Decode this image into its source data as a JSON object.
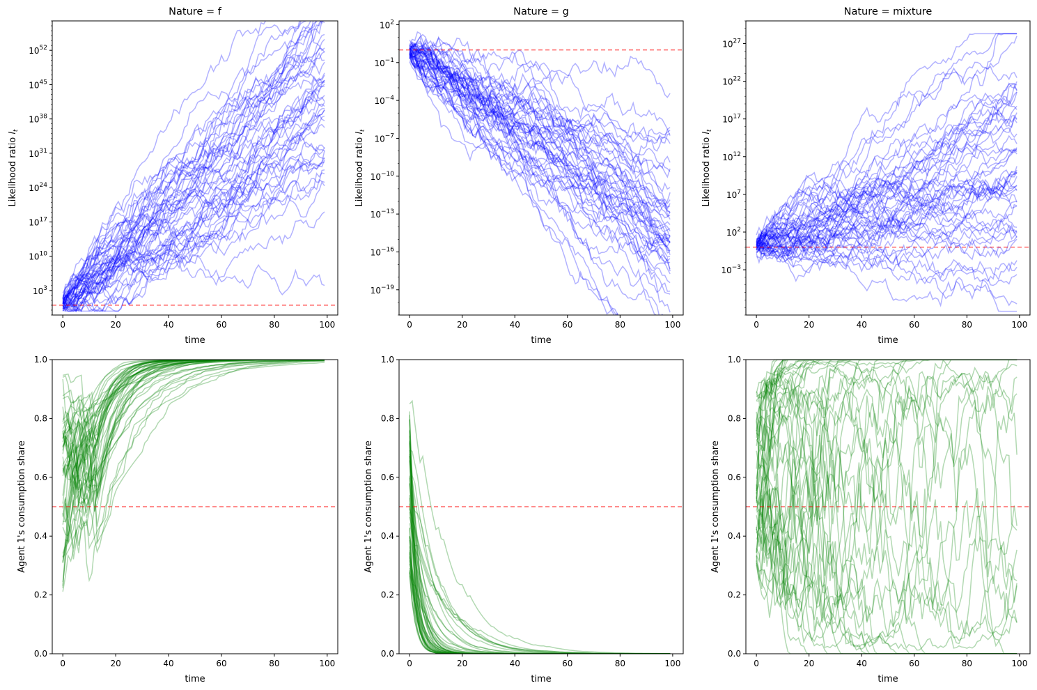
{
  "chart_data": [
    {
      "type": "line",
      "title": "Nature = f",
      "xlabel": "time",
      "ylabel": "Likelihood ratio",
      "ylabel_sub": "t",
      "yscale": "log10",
      "xlim": [
        -4,
        104
      ],
      "ylim_log10": [
        -2,
        58
      ],
      "x_ticks": [
        "0",
        "20",
        "40",
        "60",
        "80",
        "100"
      ],
      "y_tick_base": "10",
      "y_tick_exponents": [
        "3",
        "10",
        "17",
        "24",
        "31",
        "38",
        "45",
        "52"
      ],
      "reference_line": {
        "value": 1,
        "color": "#ff0000",
        "style": "dashed"
      },
      "series_color": "#0000ff",
      "paths": 50,
      "x_range": [
        0,
        99
      ],
      "end_log10_range": [
        10,
        58
      ]
    },
    {
      "type": "line",
      "title": "Nature = g",
      "xlabel": "time",
      "ylabel": "Likelihood ratio",
      "ylabel_sub": "t",
      "yscale": "log10",
      "xlim": [
        -4,
        104
      ],
      "ylim_log10": [
        -21,
        2.3
      ],
      "x_ticks": [
        "0",
        "20",
        "40",
        "60",
        "80",
        "100"
      ],
      "y_tick_base": "10",
      "y_tick_exponents": [
        "−19",
        "−16",
        "−13",
        "−10",
        "−7",
        "−4",
        "−1",
        "2"
      ],
      "reference_line": {
        "value": 1,
        "color": "#ff0000",
        "style": "dashed"
      },
      "series_color": "#0000ff",
      "paths": 50,
      "x_range": [
        0,
        99
      ],
      "end_log10_range": [
        -20.5,
        -9
      ]
    },
    {
      "type": "line",
      "title": "Nature = mixture",
      "xlabel": "time",
      "ylabel": "Likelihood ratio",
      "ylabel_sub": "t",
      "yscale": "log10",
      "xlim": [
        -4,
        104
      ],
      "ylim_log10": [
        -9,
        30
      ],
      "x_ticks": [
        "0",
        "20",
        "40",
        "60",
        "80",
        "100"
      ],
      "y_tick_base": "10",
      "y_tick_exponents": [
        "−3",
        "2",
        "7",
        "12",
        "17",
        "22",
        "27"
      ],
      "reference_line": {
        "value": 1,
        "color": "#ff0000",
        "style": "dashed"
      },
      "series_color": "#0000ff",
      "paths": 50,
      "x_range": [
        0,
        99
      ],
      "end_log10_range": [
        -6,
        28
      ]
    },
    {
      "type": "line",
      "title": "",
      "xlabel": "time",
      "ylabel": "Agent 1's consumption share",
      "xlim": [
        -4,
        104
      ],
      "ylim": [
        0,
        1
      ],
      "x_ticks": [
        "0",
        "20",
        "40",
        "60",
        "80",
        "100"
      ],
      "y_ticks": [
        "0.0",
        "0.2",
        "0.4",
        "0.6",
        "0.8",
        "1.0"
      ],
      "reference_line": {
        "value": 0.5,
        "color": "#ff0000",
        "style": "dashed"
      },
      "series_color": "#008000",
      "paths": 50,
      "x_range": [
        0,
        99
      ],
      "end_value": 1.0
    },
    {
      "type": "line",
      "title": "",
      "xlabel": "time",
      "ylabel": "Agent 1's consumption share",
      "xlim": [
        -4,
        104
      ],
      "ylim": [
        0,
        1
      ],
      "x_ticks": [
        "0",
        "20",
        "40",
        "60",
        "80",
        "100"
      ],
      "y_ticks": [
        "0.0",
        "0.2",
        "0.4",
        "0.6",
        "0.8",
        "1.0"
      ],
      "reference_line": {
        "value": 0.5,
        "color": "#ff0000",
        "style": "dashed"
      },
      "series_color": "#008000",
      "paths": 50,
      "x_range": [
        0,
        99
      ],
      "end_value": 0.0
    },
    {
      "type": "line",
      "title": "",
      "xlabel": "time",
      "ylabel": "Agent 1's consumption share",
      "xlim": [
        -4,
        104
      ],
      "ylim": [
        0,
        1
      ],
      "x_ticks": [
        "0",
        "20",
        "40",
        "60",
        "80",
        "100"
      ],
      "y_ticks": [
        "0.0",
        "0.2",
        "0.4",
        "0.6",
        "0.8",
        "1.0"
      ],
      "reference_line": {
        "value": 0.5,
        "color": "#ff0000",
        "style": "dashed"
      },
      "series_color": "#008000",
      "paths": 50,
      "x_range": [
        0,
        99
      ],
      "end_value": "mixed (0 to 1)"
    }
  ]
}
